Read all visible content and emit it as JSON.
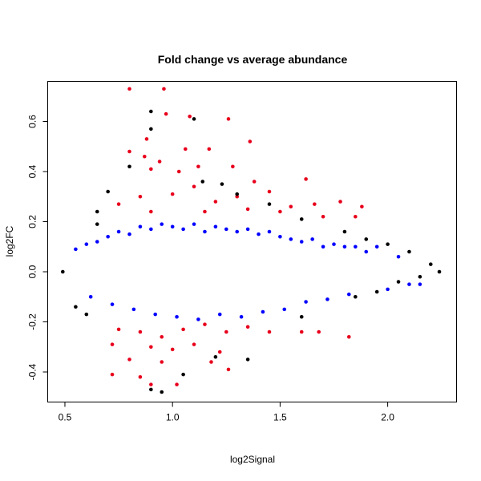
{
  "chart_data": {
    "type": "scatter",
    "title": "Fold change vs average abundance",
    "xlabel": "log2Signal",
    "ylabel": "log2FC",
    "xlim": [
      0.42,
      2.32
    ],
    "ylim": [
      -0.52,
      0.76
    ],
    "x_ticks": [
      0.5,
      1.0,
      1.5,
      2.0
    ],
    "x_tick_labels": [
      "0.5",
      "1.0",
      "1.5",
      "2.0"
    ],
    "y_ticks": [
      -0.4,
      -0.2,
      0.0,
      0.2,
      0.4,
      0.6
    ],
    "y_tick_labels": [
      "-0.4",
      "-0.2",
      "0.0",
      "0.2",
      "0.4",
      "0.6"
    ],
    "grid": false,
    "legend": "none",
    "colors": {
      "black": "#000000",
      "blue": "#0000ff",
      "red": "#e8001c"
    },
    "series": [
      {
        "color": "blue",
        "points": [
          [
            0.55,
            0.09
          ],
          [
            0.6,
            0.11
          ],
          [
            0.62,
            -0.1
          ],
          [
            0.65,
            0.12
          ],
          [
            0.7,
            0.14
          ],
          [
            0.72,
            -0.13
          ],
          [
            0.75,
            0.16
          ],
          [
            0.8,
            0.15
          ],
          [
            0.82,
            -0.15
          ],
          [
            0.85,
            0.18
          ],
          [
            0.9,
            0.17
          ],
          [
            0.92,
            -0.17
          ],
          [
            0.95,
            0.19
          ],
          [
            1.0,
            0.18
          ],
          [
            1.02,
            -0.18
          ],
          [
            1.05,
            0.17
          ],
          [
            1.1,
            0.19
          ],
          [
            1.12,
            -0.19
          ],
          [
            1.15,
            0.16
          ],
          [
            1.2,
            0.18
          ],
          [
            1.22,
            -0.17
          ],
          [
            1.25,
            0.17
          ],
          [
            1.3,
            0.16
          ],
          [
            1.32,
            -0.18
          ],
          [
            1.35,
            0.17
          ],
          [
            1.4,
            0.15
          ],
          [
            1.42,
            -0.16
          ],
          [
            1.45,
            0.16
          ],
          [
            1.5,
            0.14
          ],
          [
            1.52,
            -0.15
          ],
          [
            1.55,
            0.13
          ],
          [
            1.6,
            0.12
          ],
          [
            1.62,
            -0.12
          ],
          [
            1.65,
            0.13
          ],
          [
            1.7,
            0.1
          ],
          [
            1.72,
            -0.11
          ],
          [
            1.75,
            0.11
          ],
          [
            1.8,
            0.1
          ],
          [
            1.82,
            -0.09
          ],
          [
            1.85,
            0.1
          ],
          [
            1.9,
            0.08
          ],
          [
            1.95,
            0.1
          ],
          [
            2.0,
            -0.07
          ],
          [
            2.05,
            0.06
          ],
          [
            2.1,
            -0.05
          ],
          [
            2.15,
            -0.05
          ]
        ]
      },
      {
        "color": "red",
        "points": [
          [
            0.8,
            0.73
          ],
          [
            0.96,
            0.73
          ],
          [
            0.88,
            0.53
          ],
          [
            0.97,
            0.63
          ],
          [
            1.08,
            0.62
          ],
          [
            1.26,
            0.61
          ],
          [
            1.36,
            0.52
          ],
          [
            0.8,
            0.48
          ],
          [
            0.87,
            0.46
          ],
          [
            0.94,
            0.44
          ],
          [
            1.06,
            0.49
          ],
          [
            1.17,
            0.49
          ],
          [
            0.9,
            0.41
          ],
          [
            1.03,
            0.4
          ],
          [
            1.12,
            0.42
          ],
          [
            1.28,
            0.42
          ],
          [
            1.38,
            0.36
          ],
          [
            1.62,
            0.37
          ],
          [
            0.85,
            0.3
          ],
          [
            1.0,
            0.31
          ],
          [
            1.1,
            0.34
          ],
          [
            1.2,
            0.28
          ],
          [
            1.3,
            0.3
          ],
          [
            1.45,
            0.32
          ],
          [
            1.55,
            0.26
          ],
          [
            1.66,
            0.27
          ],
          [
            1.78,
            0.28
          ],
          [
            1.85,
            0.22
          ],
          [
            0.75,
            0.27
          ],
          [
            0.9,
            0.24
          ],
          [
            1.15,
            0.24
          ],
          [
            1.35,
            0.25
          ],
          [
            1.5,
            0.24
          ],
          [
            1.7,
            0.22
          ],
          [
            1.88,
            0.26
          ],
          [
            0.75,
            -0.23
          ],
          [
            0.85,
            -0.24
          ],
          [
            0.95,
            -0.26
          ],
          [
            1.05,
            -0.23
          ],
          [
            1.15,
            -0.21
          ],
          [
            1.25,
            -0.24
          ],
          [
            1.35,
            -0.22
          ],
          [
            1.45,
            -0.24
          ],
          [
            1.6,
            -0.24
          ],
          [
            1.68,
            -0.24
          ],
          [
            1.82,
            -0.26
          ],
          [
            0.72,
            -0.29
          ],
          [
            0.9,
            -0.3
          ],
          [
            1.0,
            -0.31
          ],
          [
            1.1,
            -0.29
          ],
          [
            1.22,
            -0.32
          ],
          [
            0.8,
            -0.35
          ],
          [
            0.95,
            -0.36
          ],
          [
            1.18,
            -0.36
          ],
          [
            1.26,
            -0.39
          ],
          [
            0.72,
            -0.41
          ],
          [
            0.85,
            -0.42
          ],
          [
            0.9,
            -0.45
          ],
          [
            1.02,
            -0.45
          ]
        ]
      },
      {
        "color": "black",
        "points": [
          [
            0.9,
            0.64
          ],
          [
            1.1,
            0.61
          ],
          [
            0.9,
            0.57
          ],
          [
            0.8,
            0.42
          ],
          [
            1.14,
            0.36
          ],
          [
            1.23,
            0.35
          ],
          [
            0.7,
            0.32
          ],
          [
            1.3,
            0.31
          ],
          [
            1.45,
            0.27
          ],
          [
            0.65,
            0.24
          ],
          [
            1.6,
            0.21
          ],
          [
            1.8,
            0.16
          ],
          [
            1.9,
            0.13
          ],
          [
            2.0,
            0.11
          ],
          [
            2.1,
            0.08
          ],
          [
            2.2,
            0.03
          ],
          [
            2.24,
            0.0
          ],
          [
            2.15,
            -0.02
          ],
          [
            2.05,
            -0.04
          ],
          [
            1.95,
            -0.08
          ],
          [
            1.85,
            -0.1
          ],
          [
            1.6,
            -0.18
          ],
          [
            1.35,
            -0.35
          ],
          [
            1.2,
            -0.34
          ],
          [
            0.9,
            -0.47
          ],
          [
            0.95,
            -0.48
          ],
          [
            1.05,
            -0.41
          ],
          [
            0.55,
            -0.14
          ],
          [
            0.6,
            -0.17
          ],
          [
            0.65,
            0.19
          ],
          [
            0.49,
            0.0
          ]
        ]
      }
    ]
  }
}
